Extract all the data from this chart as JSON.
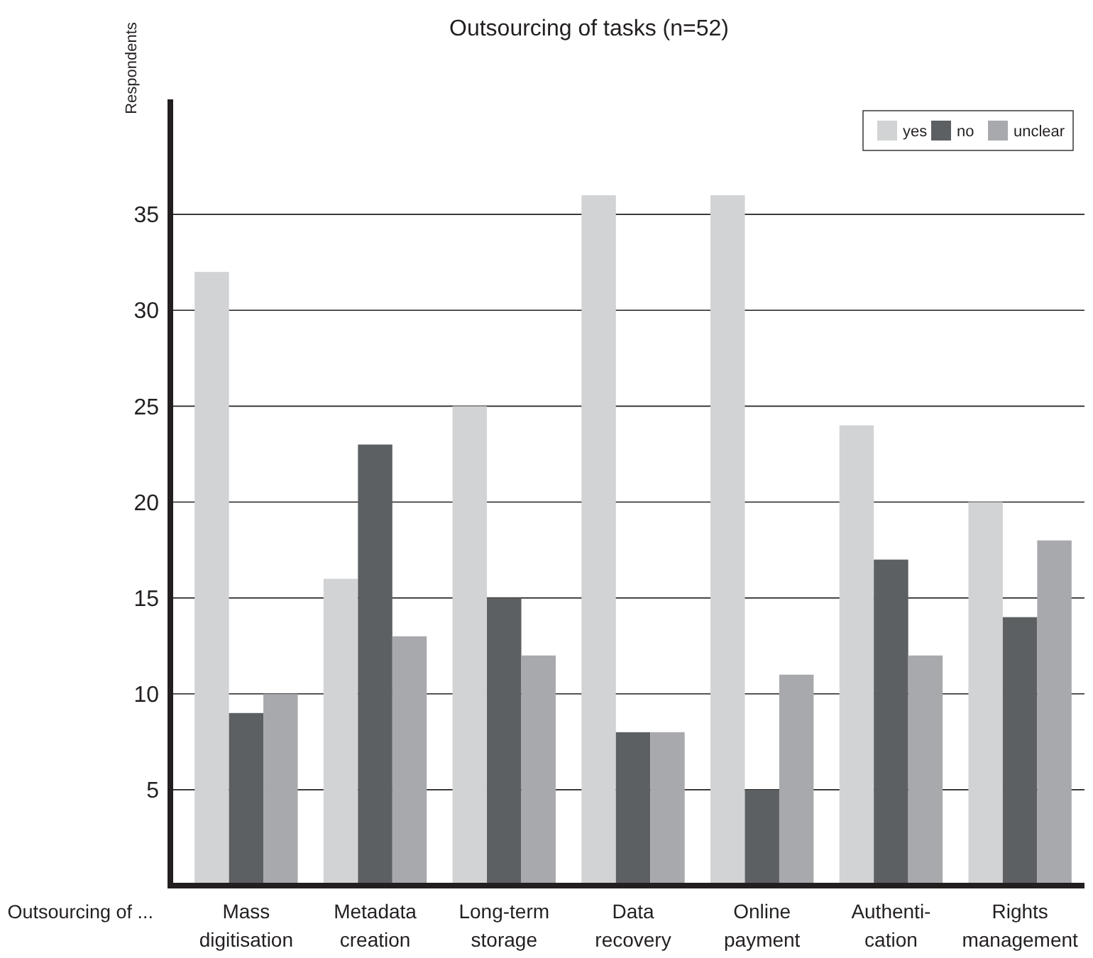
{
  "chart_data": {
    "type": "bar",
    "title": "Outsourcing of tasks (n=52)",
    "ylabel": "Respondents",
    "xlabel": "Outsourcing of ...",
    "categories": [
      "Mass\ndigitisation",
      "Metadata\ncreation",
      "Long-term\nstorage",
      "Data\nrecovery",
      "Online\npayment",
      "Authenti-\ncation",
      "Rights\nmanagement"
    ],
    "series": [
      {
        "name": "yes",
        "color": "#d1d3d4",
        "values": [
          32,
          16,
          25,
          36,
          36,
          24,
          20
        ]
      },
      {
        "name": "no",
        "color": "#5d6062",
        "values": [
          9,
          23,
          15,
          8,
          5,
          17,
          14
        ]
      },
      {
        "name": "unclear",
        "color": "#a7a9ac",
        "values": [
          10,
          13,
          12,
          8,
          11,
          12,
          18
        ]
      }
    ],
    "ylim": [
      0,
      41
    ],
    "yticks": [
      5,
      10,
      15,
      20,
      25,
      30,
      35
    ],
    "grid": "y",
    "legend": "top right"
  }
}
